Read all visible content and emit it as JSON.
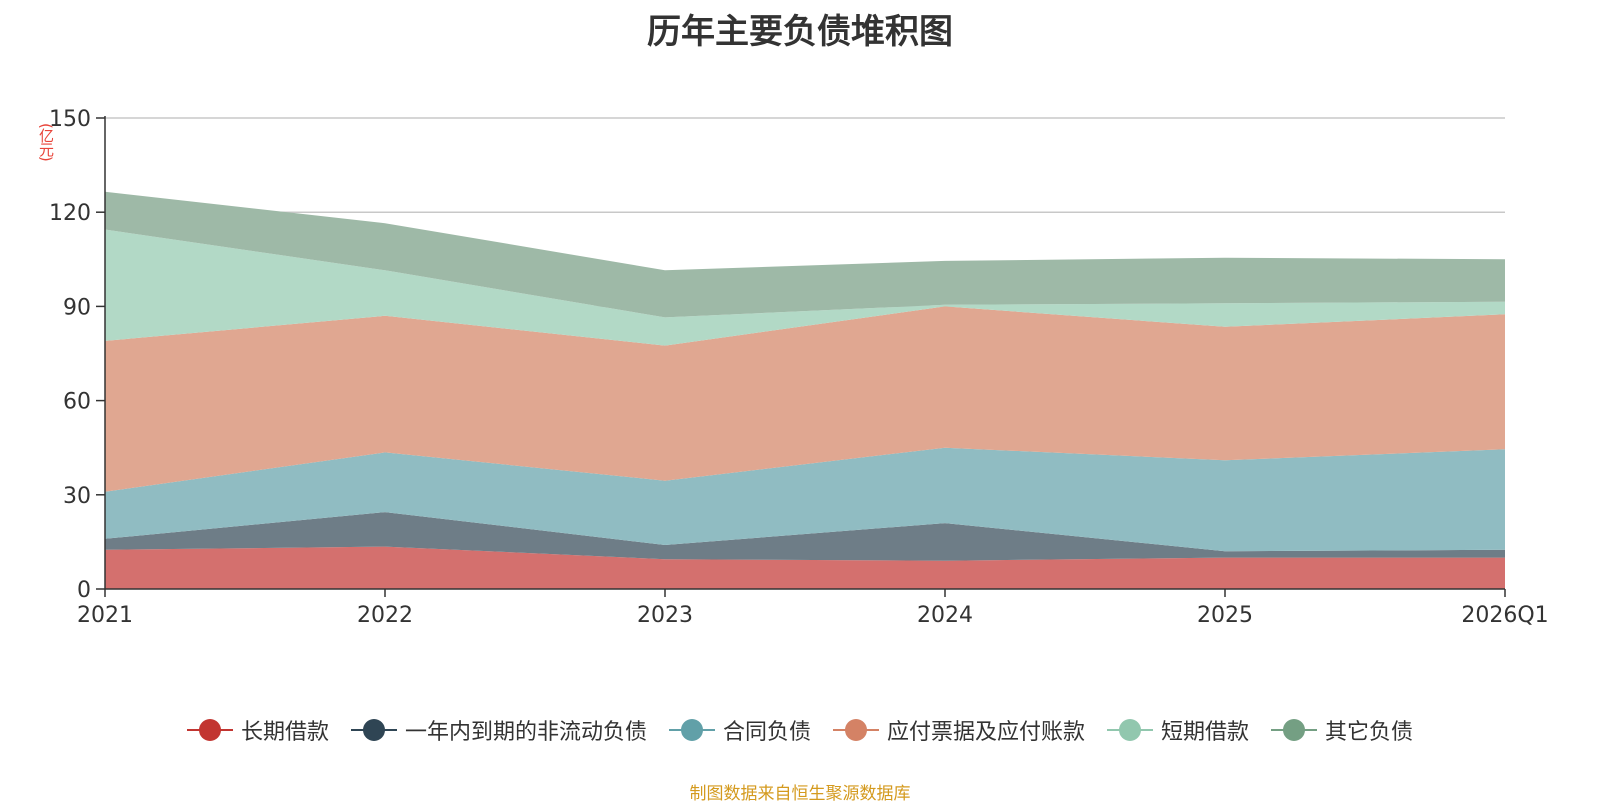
{
  "chart_data": {
    "type": "area",
    "stacked": true,
    "title": "历年主要负债堆积图",
    "ylabel": "(亿元)",
    "xlabel": "",
    "categories": [
      "2021",
      "2022",
      "2023",
      "2024",
      "2025",
      "2026Q1"
    ],
    "ylim": [
      0,
      150
    ],
    "yticks": [
      0,
      30,
      60,
      90,
      120,
      150
    ],
    "grid": true,
    "legend_position": "bottom",
    "series": [
      {
        "name": "长期借款",
        "color": "#c23531",
        "fill": "#d4706e",
        "values": [
          12.5,
          13.5,
          9.5,
          9.0,
          10.0,
          10.0
        ]
      },
      {
        "name": "一年内到期的非流动负债",
        "color": "#2f4554",
        "fill": "#6e7d87",
        "values": [
          3.5,
          11.0,
          4.5,
          12.0,
          2.0,
          2.5
        ]
      },
      {
        "name": "合同负债",
        "color": "#61a0a8",
        "fill": "#90bcc2",
        "values": [
          15.0,
          19.0,
          20.5,
          24.0,
          29.0,
          32.0
        ]
      },
      {
        "name": "应付票据及应付账款",
        "color": "#d48265",
        "fill": "#e0a791",
        "values": [
          48.0,
          43.5,
          43.0,
          45.0,
          42.5,
          43.0
        ]
      },
      {
        "name": "短期借款",
        "color": "#91c7ae",
        "fill": "#b2d9c6",
        "values": [
          35.5,
          14.5,
          9.0,
          0.5,
          7.5,
          4.0
        ]
      },
      {
        "name": "其它负债",
        "color": "#749f83",
        "fill": "#9eb9a7",
        "values": [
          12.0,
          15.0,
          15.0,
          14.0,
          14.5,
          13.5
        ]
      }
    ]
  },
  "source_note": "制图数据来自恒生聚源数据库"
}
